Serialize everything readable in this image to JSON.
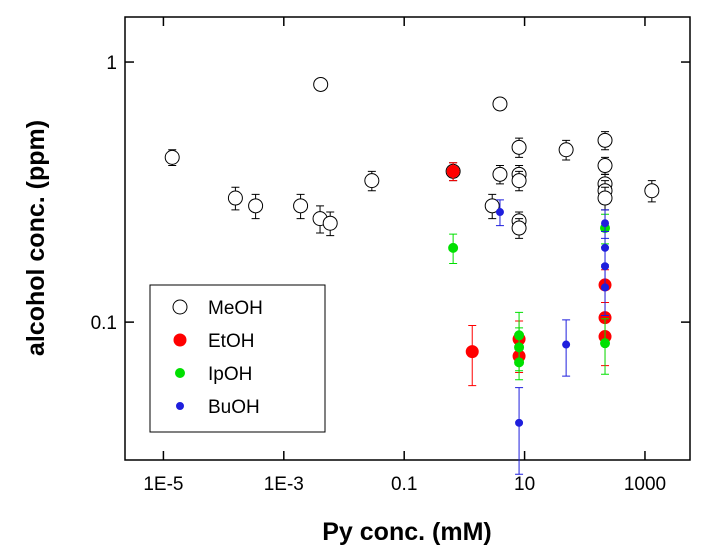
{
  "chart_data": {
    "type": "scatter",
    "xlabel": "Py conc. (mM)",
    "ylabel": "alcohol conc. (ppm)",
    "xscale": "log",
    "yscale": "log",
    "xlim": [
      2.3e-06,
      5600
    ],
    "ylim": [
      0.0295,
      1.49
    ],
    "xticks": [
      {
        "value": 1e-05,
        "label": "1E-5"
      },
      {
        "value": 0.001,
        "label": "1E-3"
      },
      0.1,
      10,
      1000
    ],
    "yticks": [
      0.1,
      1
    ],
    "legend": "lower left",
    "series": [
      {
        "name": "MeOH",
        "color": "#000000",
        "filled": false,
        "x": [
          1.4e-05,
          0.000157,
          0.00034,
          0.0019,
          0.004,
          0.0041,
          0.0059,
          0.029,
          0.65,
          2.9,
          3.9,
          3.9,
          8.1,
          8.1,
          8.1,
          8.1,
          8.1,
          49,
          217,
          217,
          217,
          217,
          217,
          1300
        ],
        "values": [
          0.43,
          0.3,
          0.28,
          0.28,
          0.25,
          0.82,
          0.24,
          0.35,
          0.38,
          0.28,
          0.37,
          0.69,
          0.47,
          0.37,
          0.35,
          0.245,
          0.23,
          0.46,
          0.5,
          0.4,
          0.34,
          0.32,
          0.3,
          0.32
        ],
        "errors": [
          0.03,
          0.03,
          0.03,
          0.03,
          0.03,
          0.04,
          0.025,
          0.03,
          0.03,
          0.03,
          0.03,
          0.03,
          0.04,
          0.03,
          0.03,
          0.02,
          0.02,
          0.04,
          0.04,
          0.03,
          0.03,
          0.03,
          0.03,
          0.03
        ]
      },
      {
        "name": "EtOH",
        "color": "#ff0000",
        "filled": true,
        "x": [
          0.65,
          1.35,
          8.1,
          8.1,
          217,
          217,
          217
        ],
        "values": [
          0.38,
          0.077,
          0.086,
          0.074,
          0.139,
          0.104,
          0.088
        ],
        "errors": [
          0.03,
          0.02,
          0.015,
          0.01,
          0.02,
          0.015,
          0.02
        ]
      },
      {
        "name": "IpOH",
        "color": "#00e000",
        "filled": true,
        "x": [
          0.65,
          8.1,
          8.1,
          8.1,
          217,
          217
        ],
        "values": [
          0.193,
          0.089,
          0.08,
          0.07,
          0.23,
          0.083
        ],
        "errors": [
          0.025,
          0.02,
          0.015,
          0.01,
          0.03,
          0.02
        ]
      },
      {
        "name": "BuOH",
        "color": "#1f1fdd",
        "filled": true,
        "x": [
          3.9,
          8.1,
          49,
          217,
          217,
          217,
          217
        ],
        "values": [
          0.265,
          0.041,
          0.082,
          0.24,
          0.193,
          0.164,
          0.136
        ],
        "errors": [
          0.03,
          0.015,
          0.02,
          0.03,
          0.03,
          0.03,
          0.03
        ]
      }
    ]
  }
}
